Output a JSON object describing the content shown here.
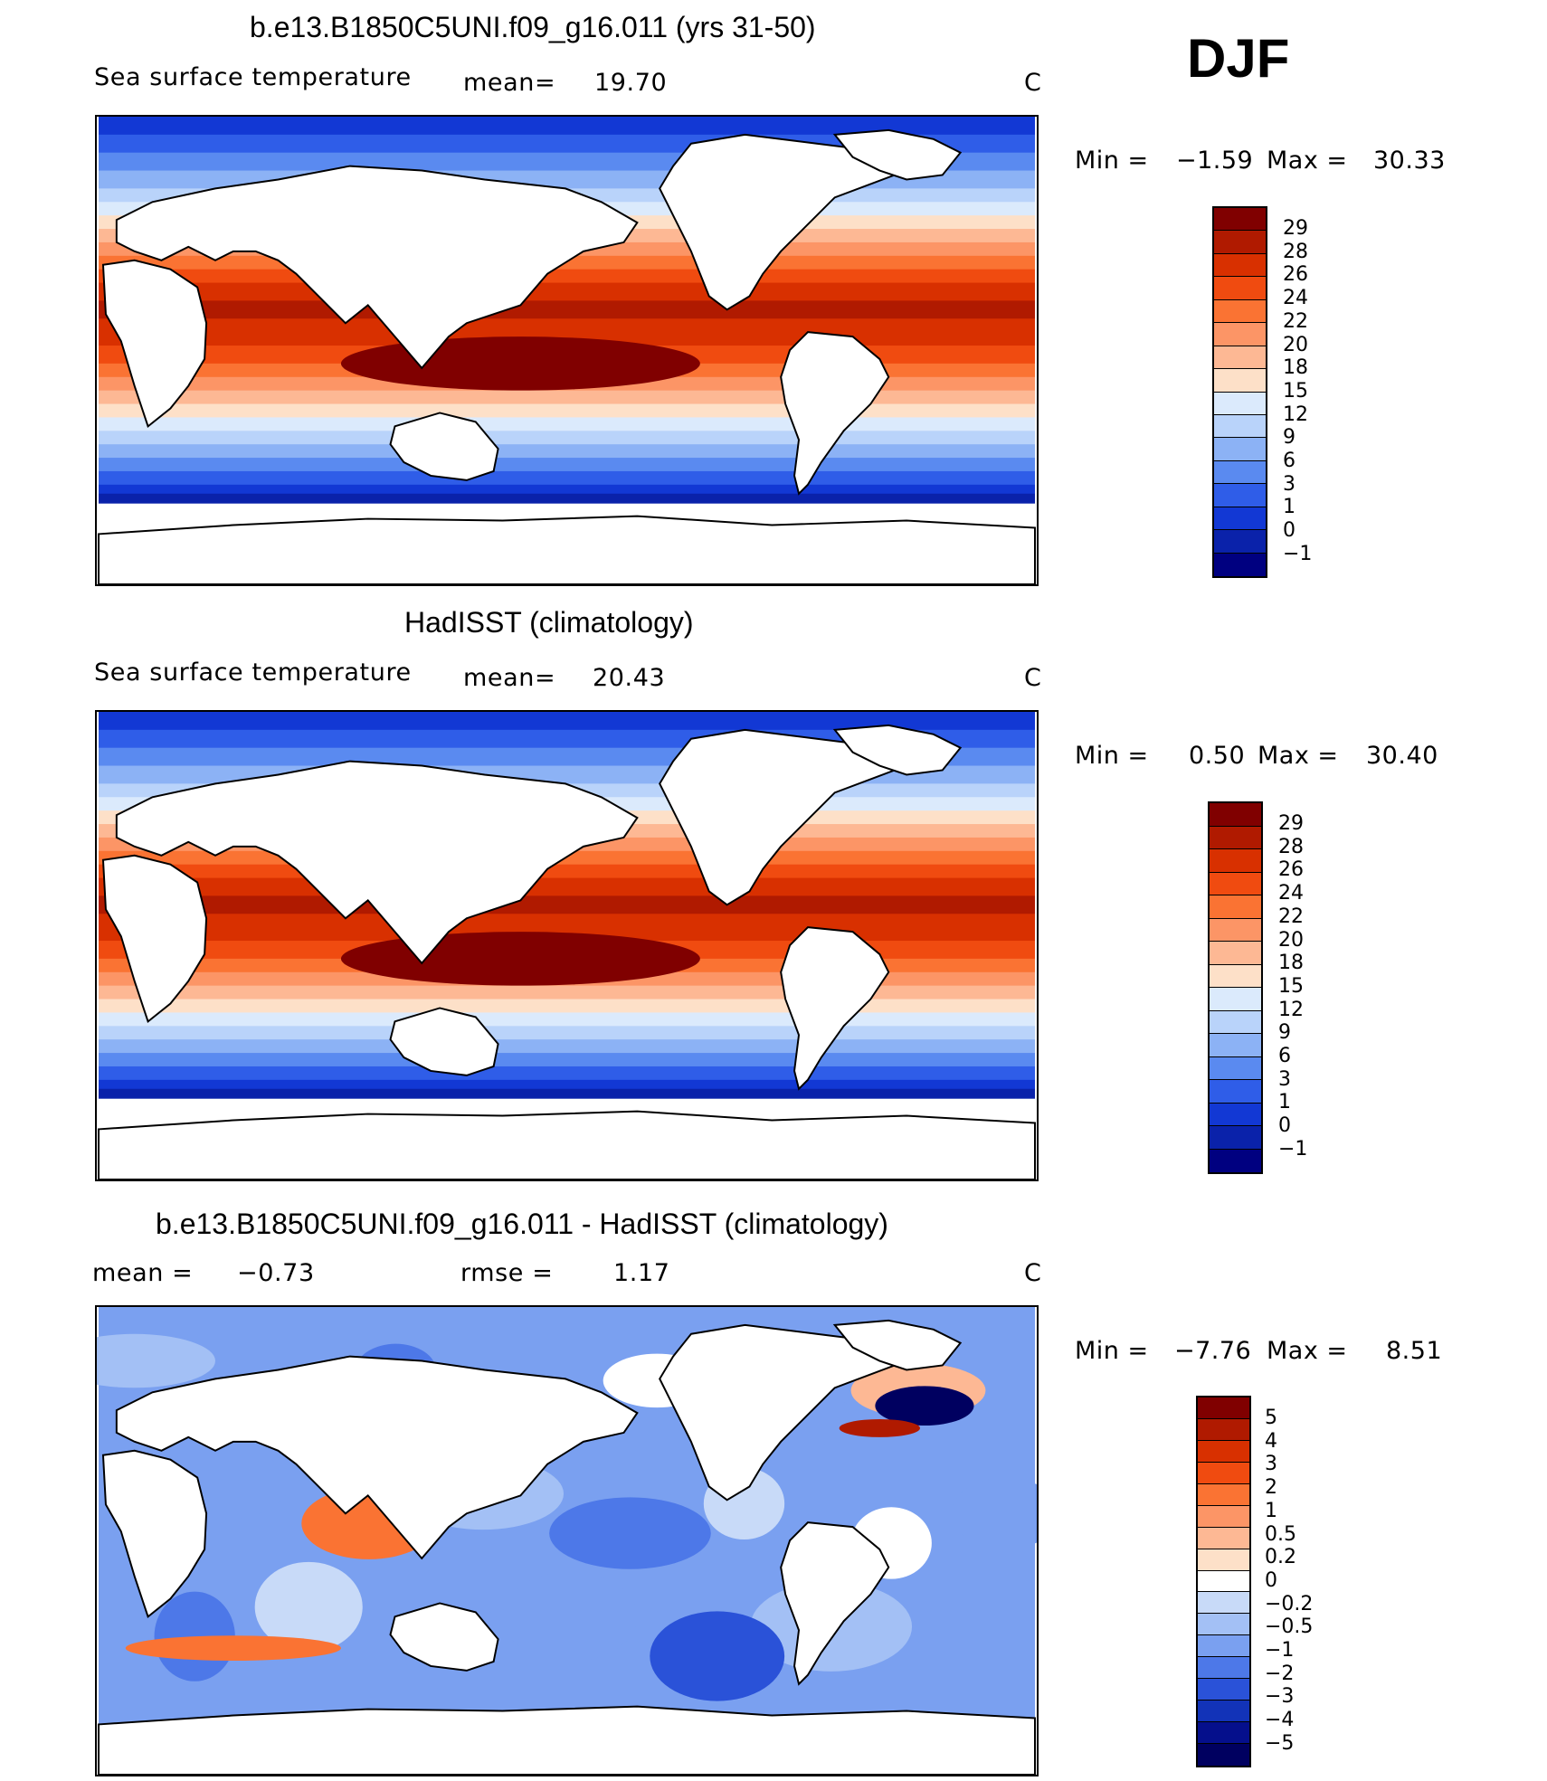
{
  "season": "DJF",
  "panels": [
    {
      "title": "b.e13.B1850C5UNI.f09_g16.011 (yrs 31-50)",
      "left_label": "Sea surface temperature",
      "mid_label": "mean=",
      "mid_value": "19.70",
      "unit": "C",
      "min_label": "Min =",
      "min_value": "−1.59",
      "max_label": "Max =",
      "max_value": "30.33",
      "colorbar_labels": [
        "29",
        "28",
        "26",
        "24",
        "22",
        "20",
        "18",
        "15",
        "12",
        "9",
        "6",
        "3",
        "1",
        "0",
        "−1"
      ]
    },
    {
      "title": "HadISST (climatology)",
      "left_label": "Sea surface temperature",
      "mid_label": "mean=",
      "mid_value": "20.43",
      "unit": "C",
      "min_label": "Min =",
      "min_value": "0.50",
      "max_label": "Max =",
      "max_value": "30.40",
      "colorbar_labels": [
        "29",
        "28",
        "26",
        "24",
        "22",
        "20",
        "18",
        "15",
        "12",
        "9",
        "6",
        "3",
        "1",
        "0",
        "−1"
      ]
    },
    {
      "title": "b.e13.B1850C5UNI.f09_g16.011 - HadISST (climatology)",
      "left_label": "mean =",
      "left_value": "−0.73",
      "mid_label": "rmse =",
      "mid_value": "1.17",
      "unit": "C",
      "min_label": "Min =",
      "min_value": "−7.76",
      "max_label": "Max =",
      "max_value": "8.51",
      "colorbar_labels": [
        "5",
        "4",
        "3",
        "2",
        "1",
        "0.5",
        "0.2",
        "0",
        "−0.2",
        "−0.5",
        "−1",
        "−2",
        "−3",
        "−4",
        "−5"
      ]
    }
  ],
  "colors": {
    "sst_scale": [
      "#800000",
      "#b01a00",
      "#d83000",
      "#f04b10",
      "#fa7333",
      "#fc9566",
      "#fdb894",
      "#fde0c8",
      "#dbeafc",
      "#b9d3fa",
      "#8cb2f5",
      "#5a8af0",
      "#2f5de8",
      "#1238d4",
      "#0a22aa",
      "#000080"
    ],
    "diff_scale": [
      "#800000",
      "#b01a00",
      "#d83000",
      "#f04b10",
      "#fa7333",
      "#fc9566",
      "#fdb894",
      "#fde0c8",
      "#ffffff",
      "#c8daf8",
      "#a3c0f5",
      "#7aa0f0",
      "#4d78e8",
      "#2a52d8",
      "#1233b8",
      "#050f8c",
      "#000060"
    ]
  },
  "chart_data": [
    {
      "type": "heatmap",
      "title": "b.e13.B1850C5UNI.f09_g16.011 (yrs 31-50)",
      "variable": "Sea surface temperature",
      "unit": "C",
      "mean": 19.7,
      "min": -1.59,
      "max": 30.33,
      "contour_levels": [
        -1,
        0,
        1,
        3,
        6,
        9,
        12,
        15,
        18,
        20,
        22,
        24,
        26,
        28,
        29
      ]
    },
    {
      "type": "heatmap",
      "title": "HadISST (climatology)",
      "variable": "Sea surface temperature",
      "unit": "C",
      "mean": 20.43,
      "min": 0.5,
      "max": 30.4,
      "contour_levels": [
        -1,
        0,
        1,
        3,
        6,
        9,
        12,
        15,
        18,
        20,
        22,
        24,
        26,
        28,
        29
      ]
    },
    {
      "type": "heatmap",
      "title": "b.e13.B1850C5UNI.f09_g16.011 - HadISST (climatology)",
      "unit": "C",
      "mean": -0.73,
      "rmse": 1.17,
      "min": -7.76,
      "max": 8.51,
      "contour_levels": [
        -5,
        -4,
        -3,
        -2,
        -1,
        -0.5,
        -0.2,
        0,
        0.2,
        0.5,
        1,
        2,
        3,
        4,
        5
      ]
    }
  ]
}
